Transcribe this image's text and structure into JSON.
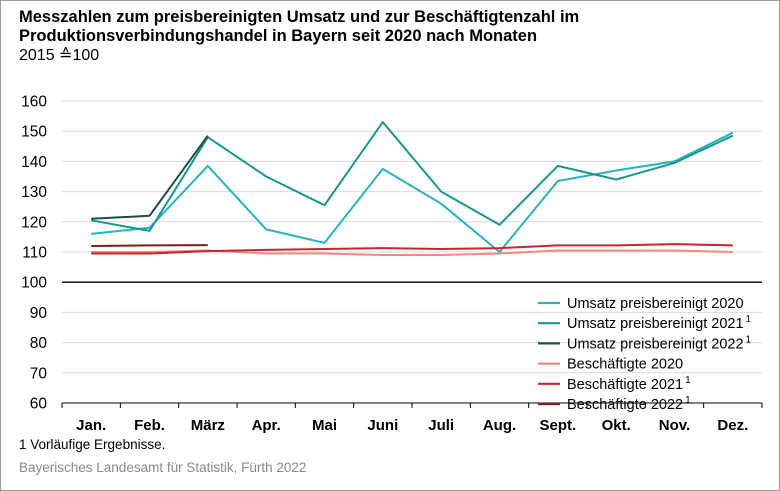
{
  "header": {
    "title_line1": "Messzahlen zum preisbereinigten Umsatz und zur Beschäftigtenzahl im",
    "title_line2": "Produktionsverbindungshandel in Bayern seit 2020 nach Monaten",
    "subtitle": "2015 ≙100"
  },
  "footer": {
    "footnote": "1  Vorläufige Ergebnisse.",
    "source": "Bayerisches Landesamt für Statistik, Fürth 2022"
  },
  "chart_data": {
    "type": "line",
    "categories": [
      "Jan.",
      "Feb.",
      "März",
      "Apr.",
      "Mai",
      "Juni",
      "Juli",
      "Aug.",
      "Sept.",
      "Okt.",
      "Nov.",
      "Dez."
    ],
    "ylim": [
      60,
      160
    ],
    "yticks": [
      60,
      70,
      80,
      90,
      100,
      110,
      120,
      130,
      140,
      150,
      160
    ],
    "reference_line": 100,
    "grid": "horizontal",
    "legend_position": "bottom-right",
    "series": [
      {
        "name": "Umsatz preisbereinigt 2020",
        "sup": "",
        "color": "#2ab3b8",
        "values": [
          116,
          118,
          138.5,
          117.5,
          113,
          137.5,
          126,
          110,
          133.5,
          137,
          140,
          149.5
        ]
      },
      {
        "name": "Umsatz preisbereinigt 2021",
        "sup": "1",
        "color": "#19968e",
        "values": [
          120.5,
          117,
          148,
          135,
          125.5,
          153,
          130,
          119,
          138.5,
          134,
          139.5,
          148.5
        ]
      },
      {
        "name": "Umsatz preisbereinigt 2022",
        "sup": "1",
        "color": "#1d4e46",
        "values": [
          121,
          122,
          148.5,
          null,
          null,
          null,
          null,
          null,
          null,
          null,
          null,
          null
        ]
      },
      {
        "name": "Beschäftigte 2020",
        "sup": "",
        "color": "#ec8c80",
        "values": [
          110,
          110,
          110.5,
          109.5,
          109.5,
          109,
          109,
          109.5,
          110.5,
          110.5,
          110.5,
          110
        ]
      },
      {
        "name": "Beschäftigte 2021",
        "sup": "1",
        "color": "#c8262c",
        "values": [
          109.5,
          109.5,
          110.3,
          110.7,
          111,
          111.3,
          111,
          111.3,
          112.2,
          112.2,
          112.6,
          112.2
        ]
      },
      {
        "name": "Beschäftigte 2022",
        "sup": "1",
        "color": "#7a1e1e",
        "values": [
          112,
          112.2,
          112.3,
          null,
          null,
          null,
          null,
          null,
          null,
          null,
          null,
          null
        ]
      }
    ]
  }
}
